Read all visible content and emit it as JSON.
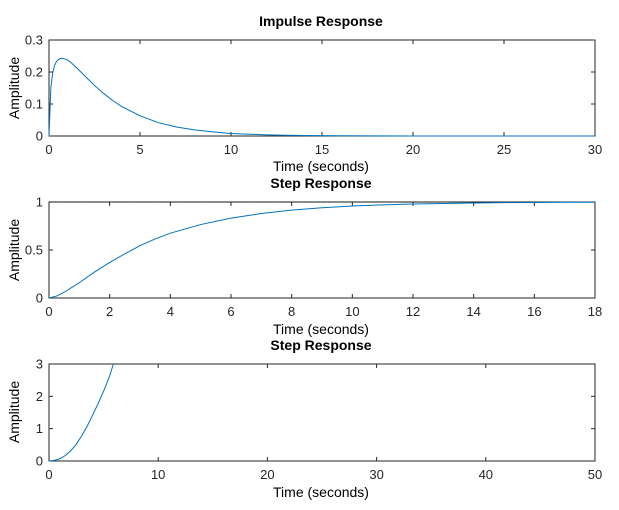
{
  "chart_data": [
    {
      "type": "line",
      "title": "Impulse Response",
      "xlabel": "Time (seconds)",
      "ylabel": "Amplitude",
      "xlim": [
        0,
        30
      ],
      "ylim": [
        0,
        0.3
      ],
      "xticks": [
        0,
        5,
        10,
        15,
        20,
        25,
        30
      ],
      "yticks": [
        0,
        0.1,
        0.2,
        0.3
      ],
      "xtick_labels": [
        "0",
        "5",
        "10",
        "15",
        "20",
        "25",
        "30"
      ],
      "ytick_labels": [
        "0",
        "0.1",
        "0.2",
        "0.3"
      ],
      "grid": false,
      "series": [
        {
          "color": "#0072bd",
          "x": [
            0,
            0.1,
            0.2,
            0.3,
            0.4,
            0.5,
            0.6,
            0.7,
            0.8,
            1.0,
            1.2,
            1.5,
            2,
            2.5,
            3,
            3.5,
            4,
            5,
            6,
            7,
            8,
            9,
            10,
            11,
            12,
            13,
            14,
            15,
            16,
            18,
            20,
            25,
            30
          ],
          "y": [
            0,
            0.15,
            0.196,
            0.219,
            0.232,
            0.238,
            0.242,
            0.243,
            0.242,
            0.238,
            0.23,
            0.214,
            0.186,
            0.158,
            0.133,
            0.111,
            0.092,
            0.063,
            0.042,
            0.028,
            0.019,
            0.013,
            0.008,
            0.0055,
            0.0036,
            0.0024,
            0.0016,
            0.001,
            0.0007,
            0.0003,
            0.0001,
            0.0,
            0.0
          ]
        }
      ]
    },
    {
      "type": "line",
      "title": "Step Response",
      "xlabel": "Time (seconds)",
      "ylabel": "Amplitude",
      "xlim": [
        0,
        18
      ],
      "ylim": [
        0,
        1
      ],
      "xticks": [
        0,
        2,
        4,
        6,
        8,
        10,
        12,
        14,
        16,
        18
      ],
      "yticks": [
        0,
        0.5,
        1
      ],
      "xtick_labels": [
        "0",
        "2",
        "4",
        "6",
        "8",
        "10",
        "12",
        "14",
        "16",
        "18"
      ],
      "ytick_labels": [
        "0",
        "0.5",
        "1"
      ],
      "grid": false,
      "reference_line": 1,
      "series": [
        {
          "color": "#0072bd",
          "x": [
            0,
            0.25,
            0.5,
            0.75,
            1,
            1.5,
            2,
            2.5,
            3,
            3.5,
            4,
            5,
            6,
            7,
            8,
            9,
            10,
            11,
            12,
            13,
            14,
            15,
            16,
            17,
            18
          ],
          "y": [
            0,
            0.02,
            0.06,
            0.11,
            0.16,
            0.27,
            0.37,
            0.46,
            0.545,
            0.615,
            0.675,
            0.765,
            0.832,
            0.88,
            0.915,
            0.94,
            0.958,
            0.97,
            0.979,
            0.985,
            0.99,
            0.993,
            0.995,
            0.997,
            0.998
          ]
        }
      ]
    },
    {
      "type": "line",
      "title": "Step Response",
      "xlabel": "Time (seconds)",
      "ylabel": "Amplitude",
      "xlim": [
        0,
        50
      ],
      "ylim": [
        0,
        3
      ],
      "xticks": [
        0,
        10,
        20,
        30,
        40,
        50
      ],
      "yticks": [
        0,
        1,
        2,
        3
      ],
      "xtick_labels": [
        "0",
        "10",
        "20",
        "30",
        "40",
        "50"
      ],
      "ytick_labels": [
        "0",
        "1",
        "2",
        "3"
      ],
      "grid": false,
      "series": [
        {
          "color": "#0072bd",
          "x": [
            0,
            0.5,
            1,
            1.5,
            2,
            2.5,
            3,
            3.5,
            4,
            4.5,
            5,
            5.5,
            5.9
          ],
          "y": [
            0,
            0.02,
            0.07,
            0.17,
            0.32,
            0.52,
            0.78,
            1.08,
            1.42,
            1.78,
            2.16,
            2.58,
            3.0
          ]
        }
      ]
    }
  ]
}
